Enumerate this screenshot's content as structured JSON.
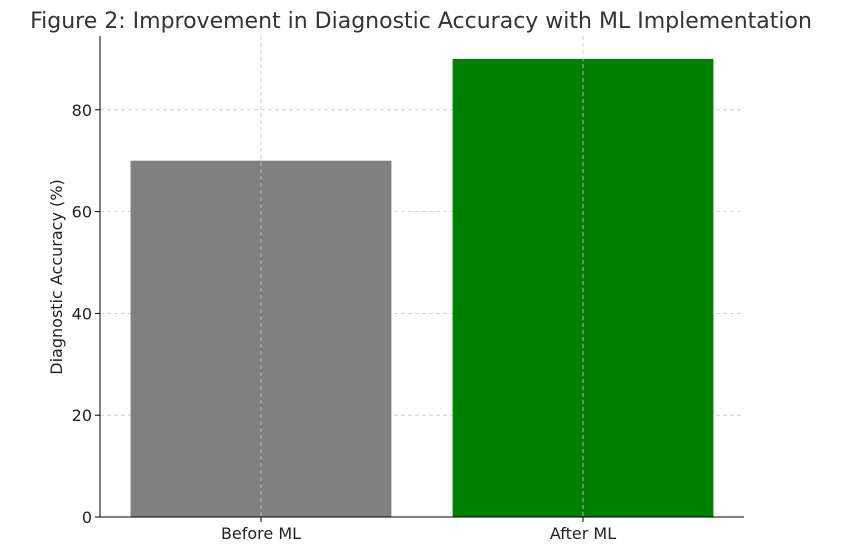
{
  "chart_data": {
    "type": "bar",
    "title": "Figure 2: Improvement in Diagnostic Accuracy with ML Implementation",
    "xlabel": "",
    "ylabel": "Diagnostic Accuracy (%)",
    "categories": [
      "Before ML",
      "After ML"
    ],
    "values": [
      70,
      90
    ],
    "colors": [
      "#808080",
      "#008000"
    ],
    "ylim": [
      0,
      94.5
    ],
    "yticks": [
      0,
      20,
      40,
      60,
      80
    ],
    "grid": true,
    "legend": "none"
  }
}
